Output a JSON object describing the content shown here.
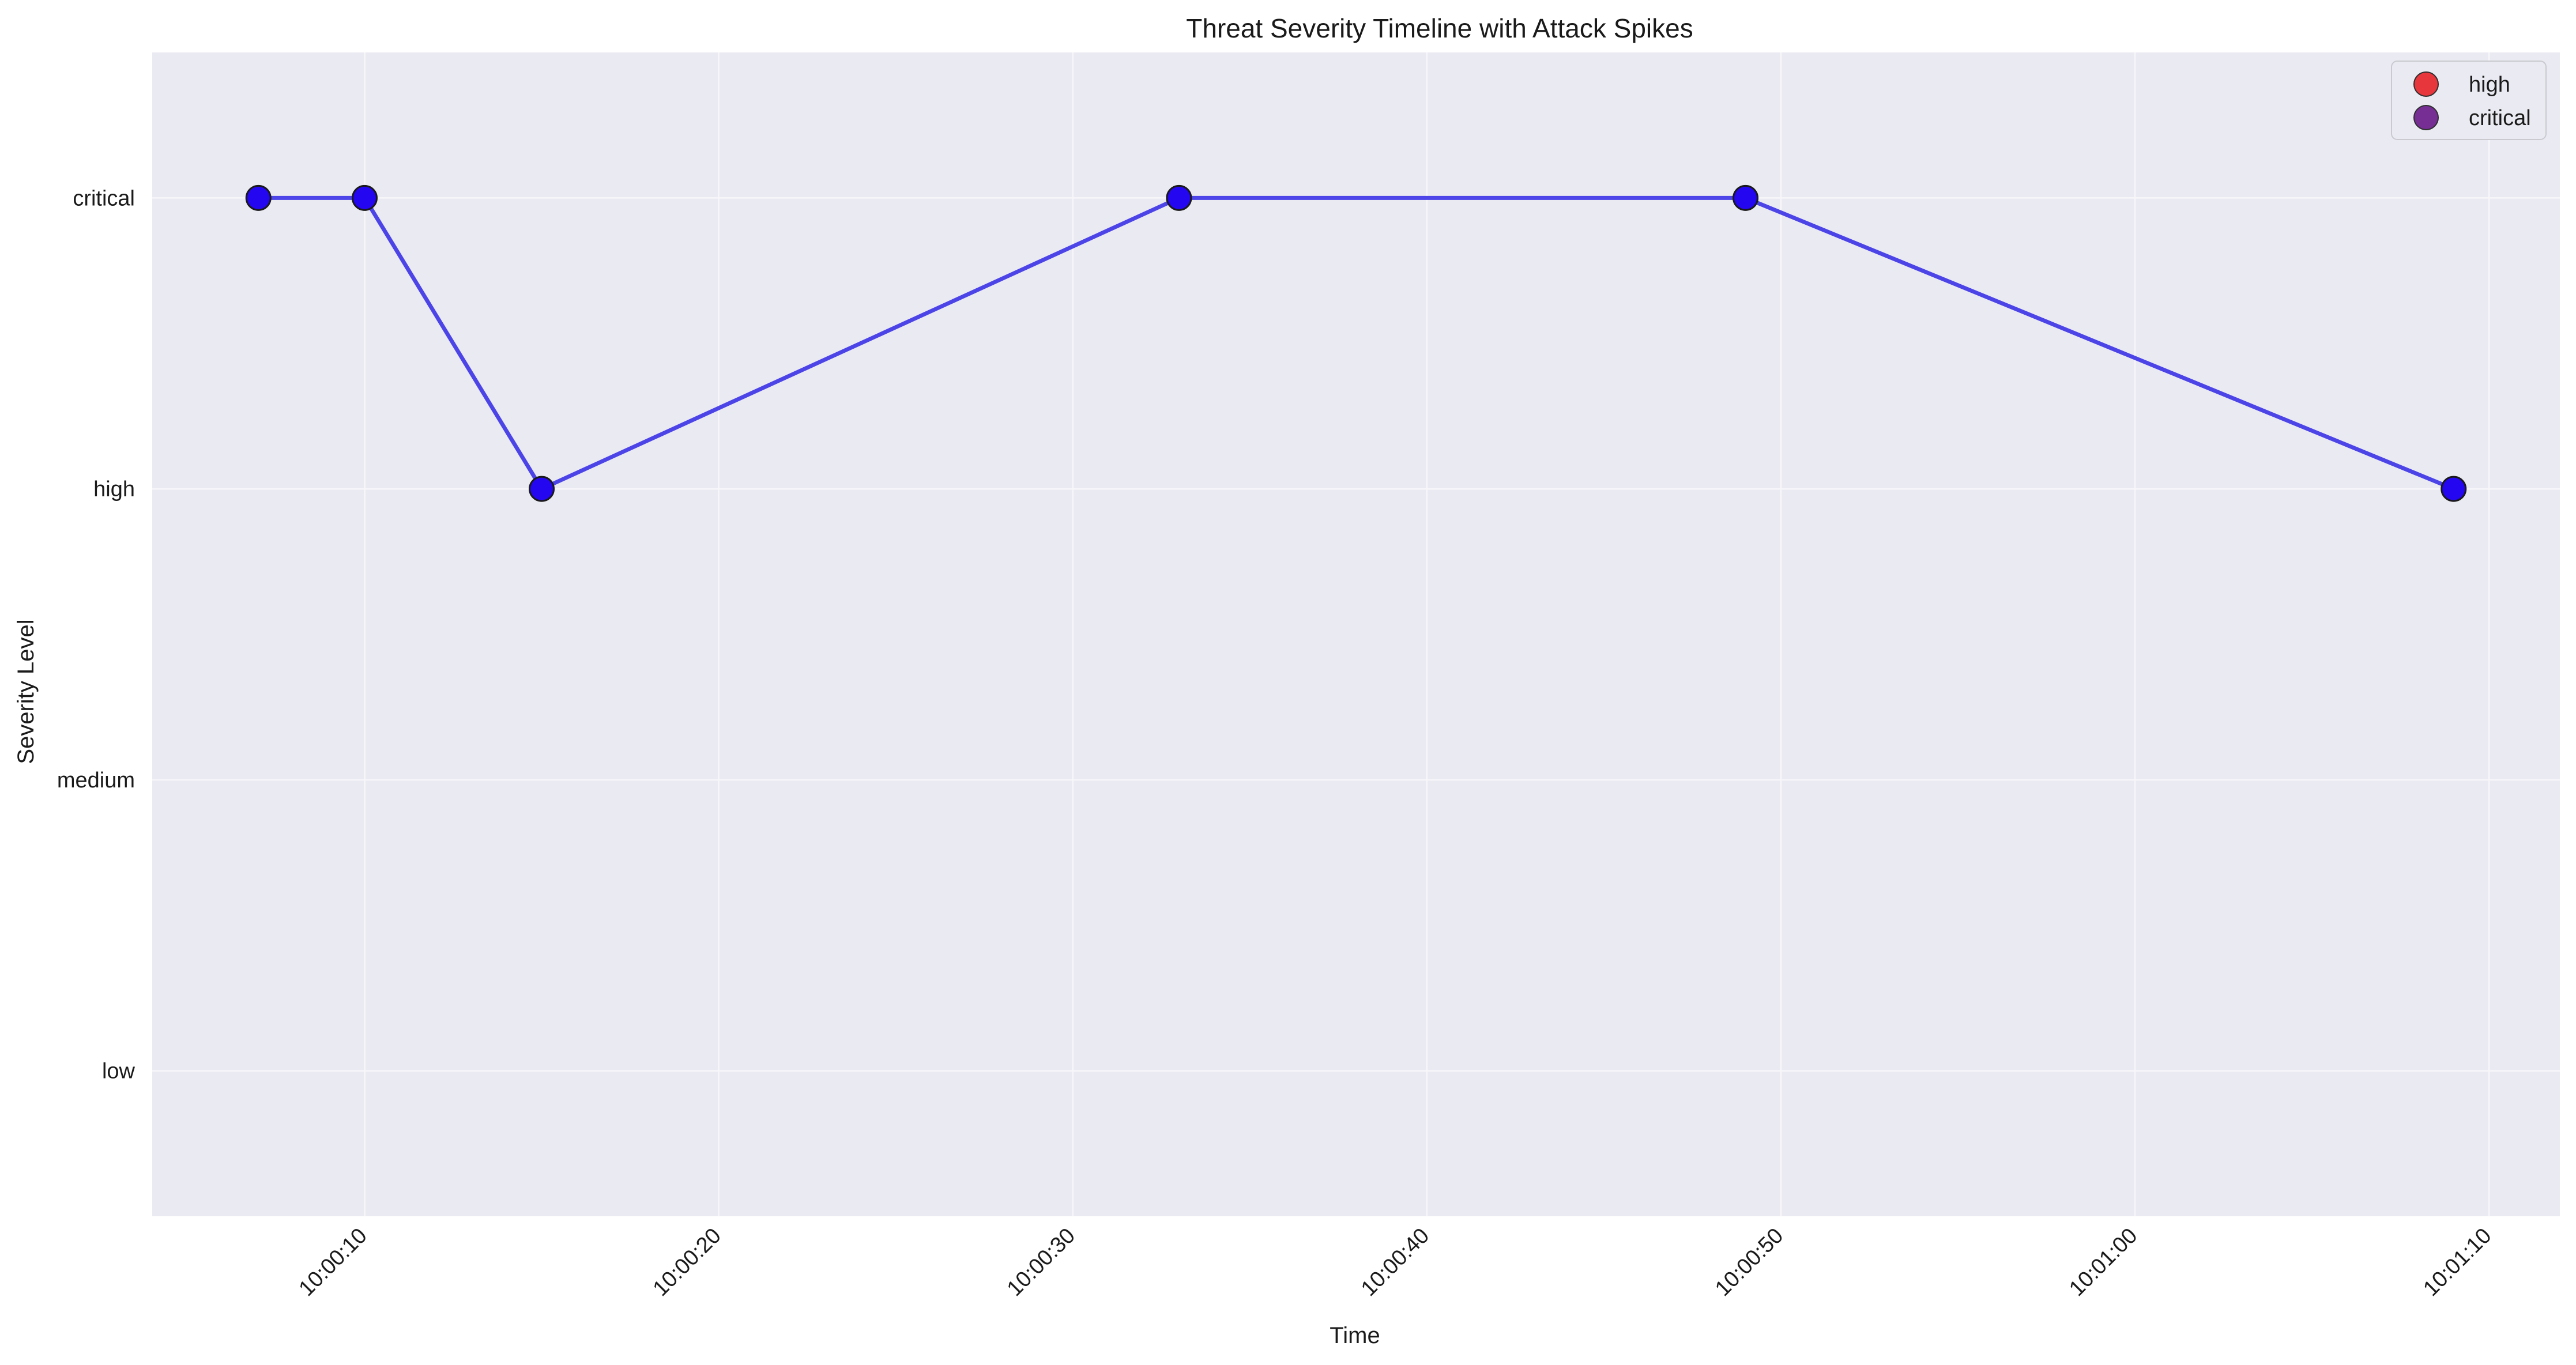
{
  "chart_data": {
    "type": "line",
    "title": "Threat Severity Timeline with Attack Spikes",
    "xlabel": "Time",
    "ylabel": "Severity Level",
    "x_tick_labels": [
      "10:00:10",
      "10:00:20",
      "10:00:30",
      "10:00:40",
      "10:00:50",
      "10:01:00",
      "10:01:10"
    ],
    "x_tick_values": [
      10,
      20,
      30,
      40,
      50,
      60,
      70
    ],
    "xlim": [
      4,
      72
    ],
    "y_categories": [
      "low",
      "medium",
      "high",
      "critical"
    ],
    "ylim": [
      0.5,
      4.5
    ],
    "grid": true,
    "series": [
      {
        "x": [
          "10:00:07",
          "10:00:10",
          "10:00:15",
          "10:00:33",
          "10:00:49",
          "10:01:09"
        ],
        "x_seconds": [
          7,
          10,
          15,
          33,
          49,
          69
        ],
        "y": [
          "critical",
          "critical",
          "high",
          "critical",
          "critical",
          "high"
        ],
        "color": "#3b32e6"
      }
    ],
    "legend": {
      "placement": "top-right",
      "entries": [
        {
          "label": "high",
          "color": "#e8232a"
        },
        {
          "label": "critical",
          "color": "#6a1a8a"
        }
      ]
    },
    "marker_color": "#2407f0",
    "background_color": "#eaeaf2"
  }
}
